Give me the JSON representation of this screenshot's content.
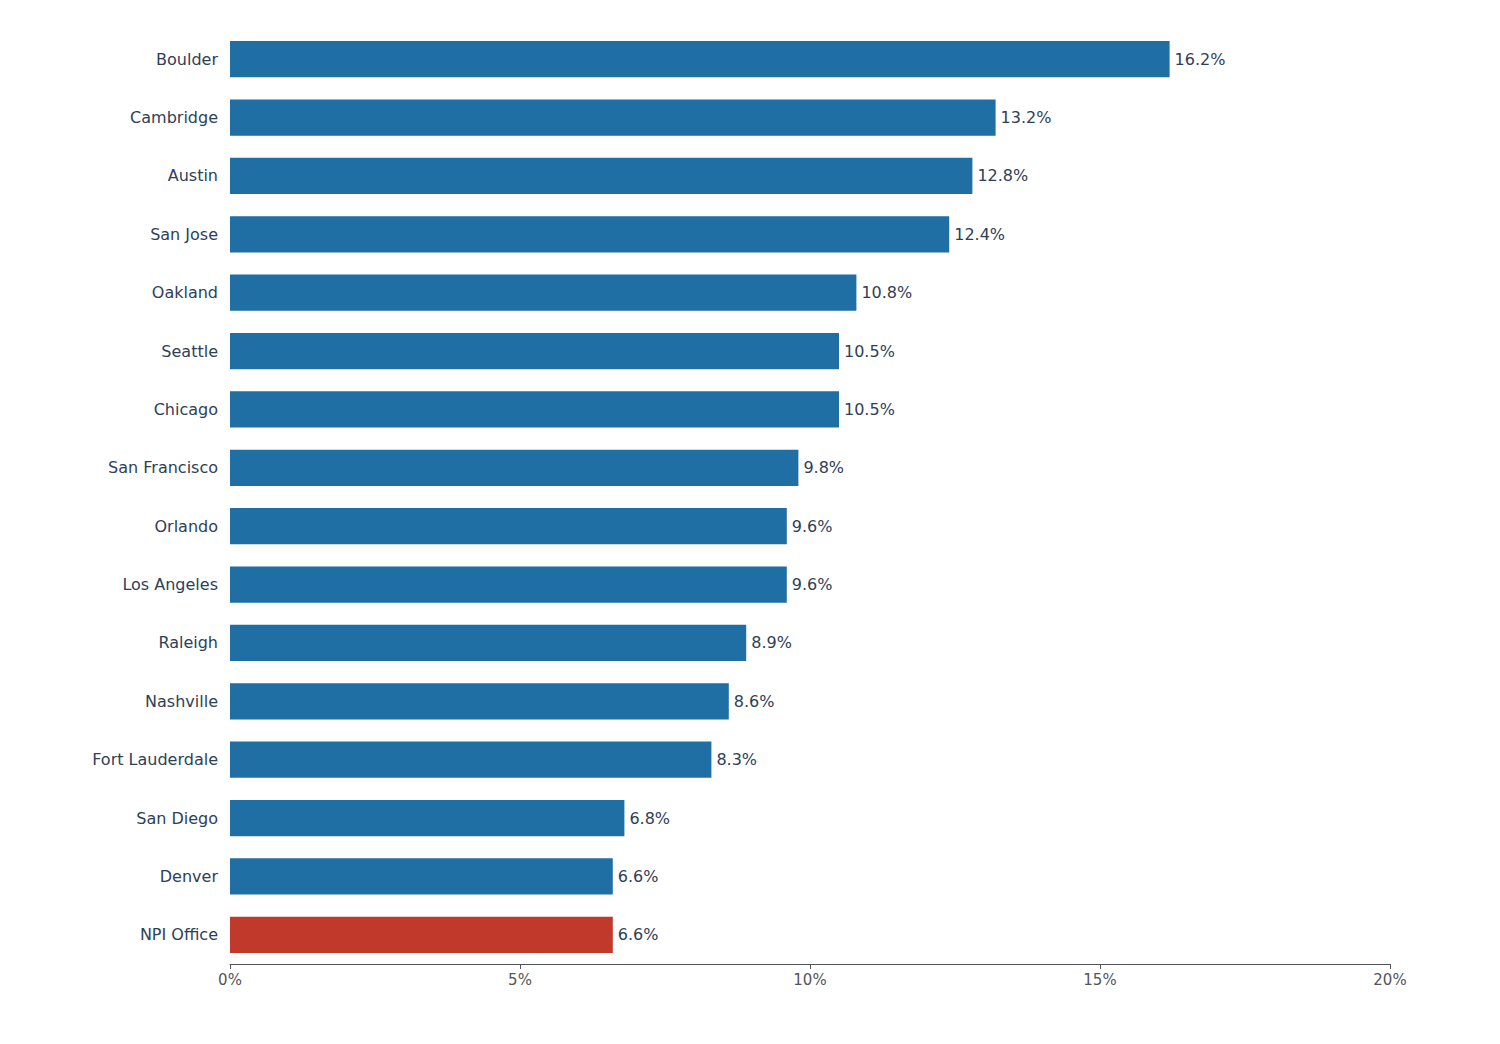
{
  "chart_data": {
    "type": "bar",
    "orientation": "horizontal",
    "categories": [
      "NPI Office",
      "Denver",
      "San Diego",
      "Fort Lauderdale",
      "Nashville",
      "Raleigh",
      "Los Angeles",
      "Orlando",
      "San Francisco",
      "Chicago",
      "Seattle",
      "Oakland",
      "San Jose",
      "Austin",
      "Cambridge",
      "Boulder"
    ],
    "values": [
      6.6,
      6.6,
      6.8,
      8.3,
      8.6,
      8.9,
      9.6,
      9.6,
      9.8,
      10.5,
      10.5,
      10.8,
      12.4,
      12.8,
      13.2,
      16.2
    ],
    "value_labels": [
      "6.6%",
      "6.6%",
      "6.8%",
      "8.3%",
      "8.6%",
      "8.9%",
      "9.6%",
      "9.6%",
      "9.8%",
      "10.5%",
      "10.5%",
      "10.8%",
      "12.4%",
      "12.8%",
      "13.2%",
      "16.2%"
    ],
    "colors": [
      "#c0392b",
      "#1f6fa5",
      "#1f6fa5",
      "#1f6fa5",
      "#1f6fa5",
      "#1f6fa5",
      "#1f6fa5",
      "#1f6fa5",
      "#1f6fa5",
      "#1f6fa5",
      "#1f6fa5",
      "#1f6fa5",
      "#1f6fa5",
      "#1f6fa5",
      "#1f6fa5",
      "#1f6fa5"
    ],
    "xlim": [
      0,
      20
    ],
    "xticks": [
      {
        "value": 0,
        "label": "0%"
      },
      {
        "value": 5,
        "label": "5%"
      },
      {
        "value": 10,
        "label": "10%"
      },
      {
        "value": 15,
        "label": "15%"
      },
      {
        "value": 20,
        "label": "20%"
      }
    ],
    "data_labels": true,
    "grid": false
  }
}
